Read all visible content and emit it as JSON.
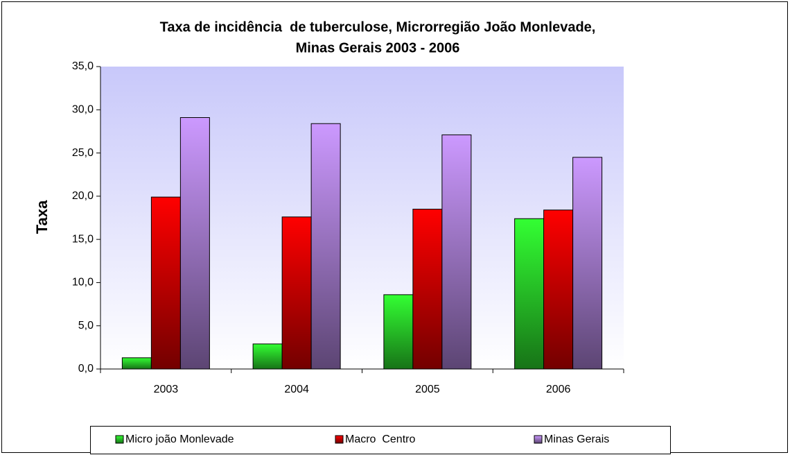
{
  "chart_data": {
    "type": "bar",
    "title": [
      "Taxa de incidência  de tuberculose, Microrregião João Monlevade,",
      "Minas Gerais 2003 - 2006"
    ],
    "y_label": "Taxa",
    "categories": [
      "2003",
      "2004",
      "2005",
      "2006"
    ],
    "series": [
      {
        "name": "Micro joão Monlevade",
        "color": "#33ff33",
        "values": [
          1.3,
          2.9,
          8.6,
          17.4
        ]
      },
      {
        "name": "Macro  Centro",
        "color": "#ff0000",
        "values": [
          19.9,
          17.6,
          18.5,
          18.4
        ]
      },
      {
        "name": "Minas Gerais",
        "color": "#cc99ff",
        "values": [
          29.1,
          28.4,
          27.1,
          24.5
        ]
      }
    ],
    "ylim": [
      0,
      35
    ],
    "yticks": [
      {
        "value": 0,
        "label": "0,0"
      },
      {
        "value": 5,
        "label": "5,0"
      },
      {
        "value": 10,
        "label": "10,0"
      },
      {
        "value": 15,
        "label": "15,0"
      },
      {
        "value": 20,
        "label": "20,0"
      },
      {
        "value": 25,
        "label": "25,0"
      },
      {
        "value": 30,
        "label": "30,0"
      },
      {
        "value": 35,
        "label": "35,0"
      }
    ],
    "grid": false,
    "legend": "bottom"
  }
}
